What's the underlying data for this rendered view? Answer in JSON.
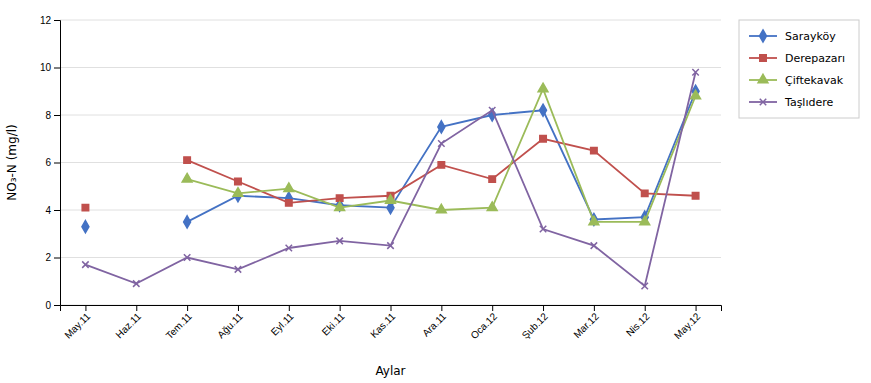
{
  "chart_data": {
    "type": "line",
    "categories": [
      "May.11",
      "Haz.11",
      "Tem.11",
      "Ağu.11",
      "Eyl.11",
      "Eki.11",
      "Kas.11",
      "Ara.11",
      "Oca.12",
      "Şub.12",
      "Mar.12",
      "Nis.12",
      "May.12"
    ],
    "series": [
      {
        "name": "Sarayköy",
        "color": "#4472C4",
        "marker": "diamond",
        "values": [
          3.3,
          null,
          3.5,
          4.6,
          4.5,
          4.2,
          4.1,
          7.5,
          8.0,
          8.2,
          3.6,
          3.7,
          9.0
        ]
      },
      {
        "name": "Derepazarı",
        "color": "#C0504D",
        "marker": "square",
        "values": [
          4.1,
          null,
          6.1,
          5.2,
          4.3,
          4.5,
          4.6,
          5.9,
          5.3,
          7.0,
          6.5,
          4.7,
          4.6
        ]
      },
      {
        "name": "Çiftekavak",
        "color": "#9BBB59",
        "marker": "triangle",
        "values": [
          null,
          null,
          5.3,
          4.7,
          4.9,
          4.1,
          4.4,
          4.0,
          4.1,
          9.1,
          3.5,
          3.5,
          8.8
        ]
      },
      {
        "name": "Taşlıdere",
        "color": "#8064A2",
        "marker": "x",
        "values": [
          1.7,
          0.9,
          2.0,
          1.5,
          2.4,
          2.7,
          2.5,
          6.8,
          8.2,
          3.2,
          2.5,
          0.8,
          9.8
        ]
      }
    ],
    "xlabel": "Aylar",
    "ylabel": "NO₃-N (mg/l)",
    "ylim": [
      0,
      12
    ],
    "yticks": [
      0,
      2,
      4,
      6,
      8,
      10,
      12
    ],
    "grid": true,
    "legend": "right"
  }
}
